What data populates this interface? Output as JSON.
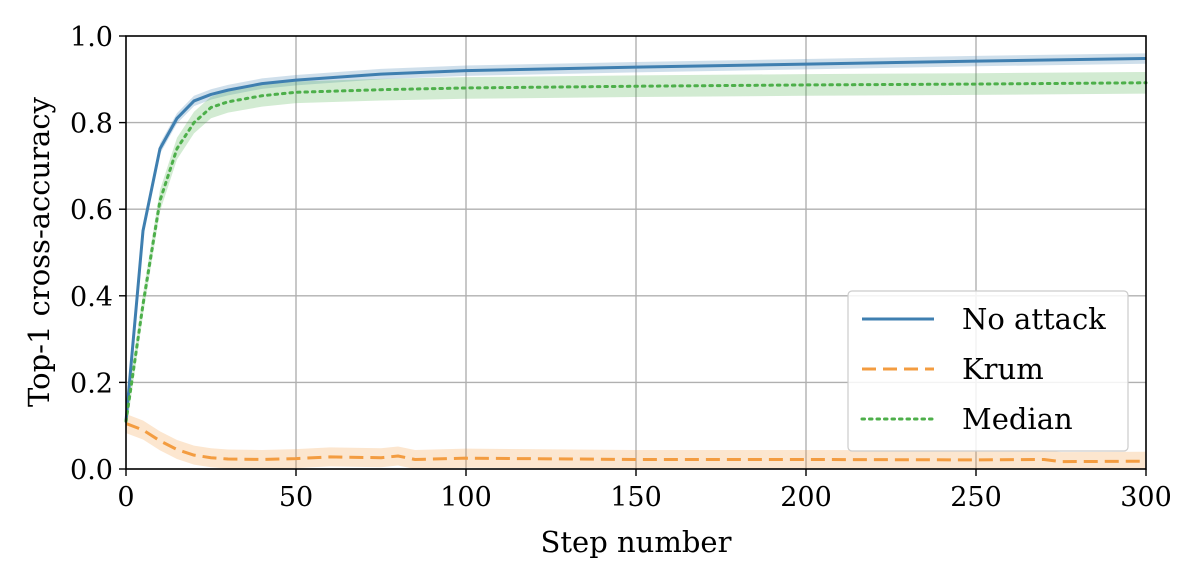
{
  "chart_data": {
    "type": "line",
    "xlabel": "Step number",
    "ylabel": "Top-1 cross-accuracy",
    "xlim": [
      0,
      300
    ],
    "ylim": [
      0,
      1.0
    ],
    "xticks": [
      "0",
      "50",
      "100",
      "150",
      "200",
      "250",
      "300"
    ],
    "yticks": [
      "0.0",
      "0.2",
      "0.4",
      "0.6",
      "0.8",
      "1.0"
    ],
    "grid": true,
    "legend_position": "lower-right",
    "series": [
      {
        "name": "No attack",
        "color": "#3f7fb0",
        "style": "solid",
        "x": [
          0,
          5,
          10,
          15,
          20,
          25,
          30,
          40,
          50,
          75,
          100,
          150,
          200,
          250,
          300
        ],
        "y": [
          0.11,
          0.55,
          0.74,
          0.81,
          0.85,
          0.865,
          0.875,
          0.89,
          0.898,
          0.912,
          0.92,
          0.928,
          0.935,
          0.942,
          0.948
        ],
        "band": 0.012
      },
      {
        "name": "Krum",
        "color": "#f39c40",
        "style": "dashed",
        "x": [
          0,
          5,
          10,
          15,
          20,
          25,
          30,
          40,
          50,
          60,
          75,
          80,
          85,
          100,
          150,
          200,
          250,
          270,
          275,
          300
        ],
        "y": [
          0.105,
          0.09,
          0.065,
          0.045,
          0.032,
          0.026,
          0.023,
          0.022,
          0.024,
          0.028,
          0.026,
          0.03,
          0.022,
          0.025,
          0.022,
          0.022,
          0.021,
          0.022,
          0.017,
          0.018
        ],
        "band": 0.022
      },
      {
        "name": "Median",
        "color": "#4daf4a",
        "style": "dotted",
        "x": [
          0,
          5,
          10,
          15,
          20,
          25,
          30,
          40,
          50,
          75,
          100,
          150,
          200,
          250,
          300
        ],
        "y": [
          0.11,
          0.38,
          0.62,
          0.74,
          0.8,
          0.835,
          0.848,
          0.862,
          0.87,
          0.876,
          0.88,
          0.884,
          0.887,
          0.889,
          0.892
        ],
        "band": 0.025
      }
    ]
  }
}
